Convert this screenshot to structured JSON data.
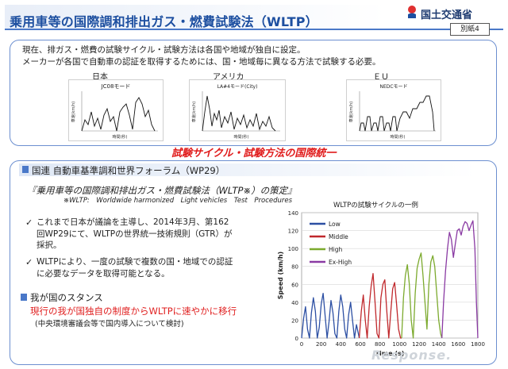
{
  "header": {
    "title": "乗用車等の国際調和排出ガス・燃費試験法（WLTP）",
    "ministry": "国土交通省",
    "attachment": "別紙4"
  },
  "intro": {
    "line1": "現在、排ガス・燃費の試験サイクル・試験方法は各国や地域が独自に設定。",
    "line2": "メーカーが各国で自動車の認証を取得するためには、国・地域毎に異なる方法で試験する必要。"
  },
  "regions": [
    {
      "label": "日本",
      "chart_title": "JC08モード"
    },
    {
      "label": "アメリカ",
      "chart_title": "LA#4モード(City)"
    },
    {
      "label": "ＥＵ",
      "chart_title": "NEDCモード"
    }
  ],
  "mini_axes": {
    "xlabel": "時間(秒)",
    "ylabel": "車速(km/h)"
  },
  "slogan": "試験サイクル・試験方法の国際統一",
  "wp29": {
    "header": "国連 自動車基準調和世界フォーラム（WP29）",
    "quote": "『乗用車等の国際調和排出ガス・燃費試験法（WLTP※）の策定』",
    "note": "※WLTP:　Worldwide harmonized　Light vehicles　Test　Procedures",
    "check_mark": "✓",
    "bullets": [
      [
        "これまで日本が議論を主導し、2014年3月、第162",
        "回WP29にて、WLTPの世界統一技術規則（GTR）が",
        "採択。"
      ],
      [
        "WLTPにより、一度の試験で複数の国・地域での認証",
        "に必要なデータを取得可能となる。"
      ]
    ]
  },
  "stance": {
    "heading": "我が国のスタンス",
    "position": "現行の我が国独自の制度からWLTPに速やかに移行",
    "note": "(中央環境審議会等で国内導入について検討)"
  },
  "colors": {
    "title": "#1d4fa0",
    "frame": "#6c8fd0",
    "accent": "#e01a1a",
    "low": "#2c4fa3",
    "middle": "#c0282c",
    "high": "#7caa2e",
    "exhigh": "#8a3aa3"
  },
  "chart_data": {
    "type": "line",
    "title": "WLTPの試験サイクルの一例",
    "xlabel": "Time (s)",
    "ylabel": "Speed (km/h)",
    "xlim": [
      0,
      1800
    ],
    "ylim": [
      0,
      140
    ],
    "xticks": [
      0,
      200,
      400,
      600,
      800,
      1000,
      1200,
      1400,
      1600,
      1800
    ],
    "yticks": [
      0,
      20,
      40,
      60,
      80,
      100,
      120,
      140
    ],
    "legend_position": "top-left",
    "series": [
      {
        "name": "Low",
        "color": "#2c4fa3",
        "x": [
          0,
          20,
          40,
          60,
          80,
          100,
          120,
          140,
          160,
          180,
          200,
          220,
          240,
          260,
          280,
          300,
          320,
          340,
          360,
          380,
          400,
          420,
          440,
          460,
          480,
          500,
          520,
          540,
          560,
          589
        ],
        "y": [
          0,
          22,
          35,
          10,
          0,
          28,
          45,
          30,
          0,
          12,
          38,
          50,
          25,
          0,
          18,
          42,
          28,
          5,
          0,
          30,
          48,
          35,
          10,
          0,
          26,
          40,
          20,
          0,
          15,
          0
        ]
      },
      {
        "name": "Middle",
        "color": "#c0282c",
        "x": [
          589,
          610,
          630,
          650,
          670,
          690,
          710,
          730,
          750,
          770,
          790,
          810,
          830,
          850,
          870,
          890,
          910,
          930,
          950,
          970,
          990,
          1010,
          1022
        ],
        "y": [
          0,
          30,
          48,
          20,
          0,
          35,
          58,
          72,
          40,
          5,
          0,
          45,
          60,
          65,
          30,
          0,
          28,
          55,
          62,
          38,
          10,
          0,
          0
        ]
      },
      {
        "name": "High",
        "color": "#7caa2e",
        "x": [
          1022,
          1040,
          1060,
          1080,
          1100,
          1120,
          1140,
          1160,
          1180,
          1200,
          1220,
          1240,
          1260,
          1280,
          1300,
          1320,
          1340,
          1360,
          1380,
          1400,
          1420,
          1433
        ],
        "y": [
          0,
          45,
          70,
          82,
          60,
          20,
          0,
          50,
          78,
          88,
          95,
          70,
          40,
          10,
          60,
          85,
          92,
          80,
          50,
          20,
          5,
          0
        ]
      },
      {
        "name": "Ex-High",
        "color": "#8a3aa3",
        "x": [
          1433,
          1450,
          1470,
          1490,
          1510,
          1530,
          1550,
          1570,
          1590,
          1610,
          1630,
          1650,
          1670,
          1690,
          1710,
          1730,
          1750,
          1770,
          1785,
          1800
        ],
        "y": [
          0,
          40,
          75,
          100,
          118,
          110,
          90,
          105,
          120,
          122,
          115,
          125,
          130,
          128,
          120,
          126,
          131,
          100,
          40,
          0
        ]
      }
    ]
  }
}
